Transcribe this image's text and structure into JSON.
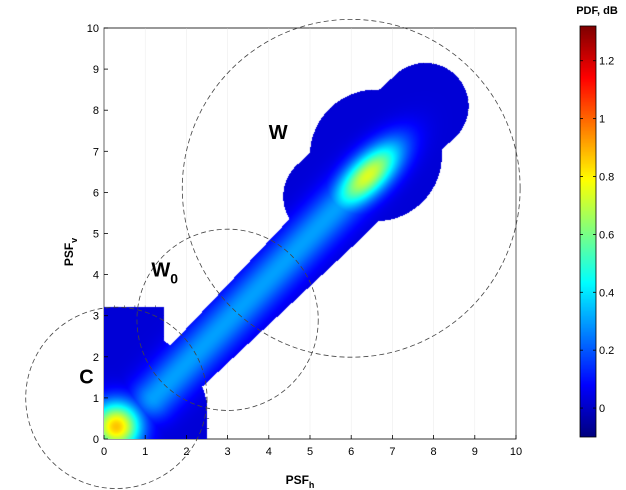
{
  "chart_data": {
    "type": "heatmap",
    "title": "",
    "xlabel": "PSF",
    "xlabel_sub": "h",
    "ylabel": "PSF",
    "ylabel_sub": "v",
    "xlim": [
      0,
      10
    ],
    "ylim": [
      0,
      10
    ],
    "x_ticks": [
      "0",
      "1",
      "2",
      "3",
      "4",
      "5",
      "6",
      "7",
      "8",
      "9",
      "10"
    ],
    "y_ticks": [
      "0",
      "1",
      "2",
      "3",
      "4",
      "5",
      "6",
      "7",
      "8",
      "9",
      "10"
    ],
    "grid": true,
    "colorbar": {
      "title": "PDF, dB",
      "range": [
        -0.1,
        1.32
      ],
      "ticks": [
        "0",
        "0.2",
        "0.4",
        "0.6",
        "0.8",
        "1",
        "1.2"
      ],
      "tick_values": [
        0,
        0.2,
        0.4,
        0.6,
        0.8,
        1.0,
        1.2
      ],
      "colormap": "jet",
      "position": "right"
    },
    "regions": [
      {
        "label": "C",
        "label_sub": "",
        "center": [
          0.3,
          1.0
        ],
        "radius": 2.2,
        "label_at": [
          -0.6,
          1.35
        ]
      },
      {
        "label": "W",
        "label_sub": "0",
        "center": [
          3.0,
          2.9
        ],
        "radius": 2.2,
        "label_at": [
          1.15,
          3.95
        ]
      },
      {
        "label": "W",
        "label_sub": "",
        "center": [
          6.0,
          6.1
        ],
        "radius": 4.1,
        "label_at": [
          4.0,
          7.3
        ]
      }
    ],
    "peaks": [
      {
        "x": 0.3,
        "y": 0.3,
        "value": 0.85
      },
      {
        "x": 6.4,
        "y": 6.4,
        "value": 0.75
      }
    ]
  },
  "colors": {
    "background": "#ffffff",
    "outside_data": "#ffffff",
    "grid": "#000000"
  }
}
